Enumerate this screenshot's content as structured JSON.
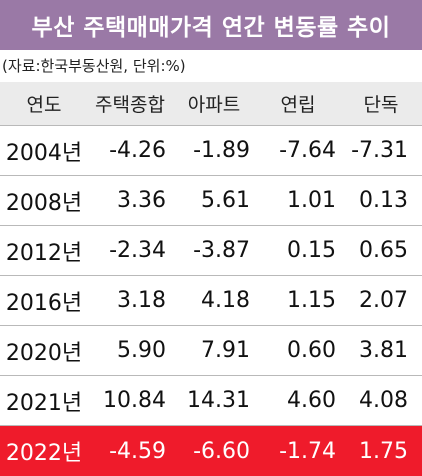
{
  "title": "부산 주택매매가격 연간 변동률 추이",
  "source": "(자료:한국부동산원, 단위:%)",
  "colors": {
    "title_bg": "#9a79a6",
    "header_bg": "#ebebeb",
    "highlight_bg": "#ef1b2b"
  },
  "table": {
    "headers": [
      "연도",
      "주택종합",
      "아파트",
      "연립",
      "단독"
    ],
    "rows": [
      [
        "2004년",
        "-4.26",
        "-1.89",
        "-7.64",
        "-7.31"
      ],
      [
        "2008년",
        "3.36",
        "5.61",
        "1.01",
        "0.13"
      ],
      [
        "2012년",
        "-2.34",
        "-3.87",
        "0.15",
        "0.65"
      ],
      [
        "2016년",
        "3.18",
        "4.18",
        "1.15",
        "2.07"
      ],
      [
        "2020년",
        "5.90",
        "7.91",
        "0.60",
        "3.81"
      ],
      [
        "2021년",
        "10.84",
        "14.31",
        "4.60",
        "4.08"
      ],
      [
        "2022년",
        "-4.59",
        "-6.60",
        "-1.74",
        "1.75"
      ]
    ],
    "highlighted_row": "2022년"
  }
}
